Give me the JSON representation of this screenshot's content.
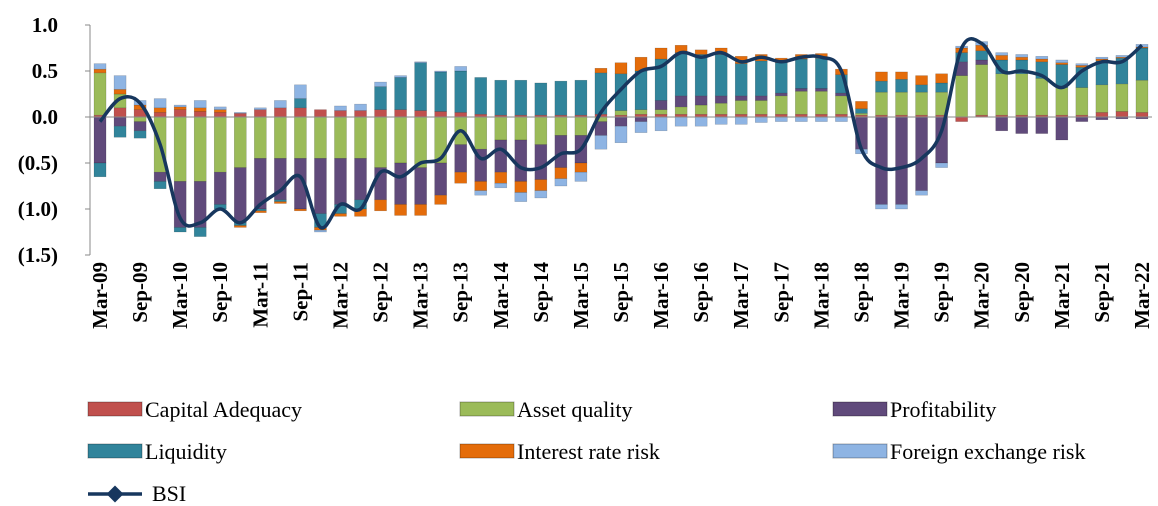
{
  "chart_data": {
    "type": "bar",
    "categories": [
      "Mar-09",
      null,
      "Sep-09",
      null,
      "Mar-10",
      null,
      "Sep-10",
      null,
      "Mar-11",
      null,
      "Sep-11",
      null,
      "Mar-12",
      null,
      "Sep-12",
      null,
      "Mar-13",
      null,
      "Sep-13",
      null,
      "Mar-14",
      null,
      "Sep-14",
      null,
      "Mar-15",
      null,
      "Sep-15",
      null,
      "Mar-16",
      null,
      "Sep-16",
      null,
      "Mar-17",
      null,
      "Sep-17",
      null,
      "Mar-18",
      null,
      "Sep-18",
      null,
      "Mar-19",
      null,
      "Sep-19",
      null,
      "Mar-20",
      null,
      "Sep-20",
      null,
      "Mar-21",
      null,
      "Sep-21",
      null,
      "Mar-22"
    ],
    "series": [
      {
        "name": "Capital Adequacy",
        "color": "#c0504d",
        "values": [
          0.02,
          0.1,
          0.08,
          0.05,
          0.08,
          0.06,
          0.05,
          0.04,
          0.08,
          0.1,
          0.1,
          0.08,
          0.07,
          0.07,
          0.08,
          0.08,
          0.07,
          0.06,
          0.05,
          0.03,
          0.02,
          0.02,
          0.02,
          0.02,
          0.02,
          0.03,
          0.02,
          0.03,
          0.03,
          0.03,
          0.03,
          0.03,
          0.03,
          0.03,
          0.03,
          0.03,
          0.03,
          0.03,
          0.02,
          0.02,
          0.02,
          0.02,
          0.02,
          -0.05,
          0.02,
          0.02,
          0.02,
          0.02,
          0.02,
          0.02,
          0.05,
          0.06,
          0.05
        ]
      },
      {
        "name": "Asset quality",
        "color": "#9bbb59",
        "values": [
          0.46,
          0.15,
          -0.05,
          -0.6,
          -0.7,
          -0.7,
          -0.6,
          -0.55,
          -0.45,
          -0.45,
          -0.45,
          -0.45,
          -0.45,
          -0.45,
          -0.55,
          -0.5,
          -0.55,
          -0.5,
          -0.3,
          -0.35,
          -0.25,
          -0.25,
          -0.3,
          -0.2,
          -0.2,
          -0.05,
          0.05,
          0.05,
          0.05,
          0.08,
          0.1,
          0.12,
          0.15,
          0.15,
          0.2,
          0.25,
          0.25,
          0.2,
          0.02,
          0.25,
          0.25,
          0.25,
          0.25,
          0.45,
          0.55,
          0.45,
          0.45,
          0.4,
          0.3,
          0.3,
          0.3,
          0.3,
          0.35
        ]
      },
      {
        "name": "Profitability",
        "color": "#604a7b",
        "values": [
          -0.5,
          -0.1,
          -0.1,
          -0.1,
          -0.5,
          -0.5,
          -0.35,
          -0.6,
          -0.55,
          -0.45,
          -0.55,
          -0.6,
          -0.5,
          -0.45,
          -0.35,
          -0.45,
          -0.4,
          -0.35,
          -0.3,
          -0.35,
          -0.35,
          -0.45,
          -0.38,
          -0.35,
          -0.3,
          -0.15,
          -0.1,
          -0.05,
          0.1,
          0.12,
          0.1,
          0.08,
          0.05,
          0.05,
          0.03,
          0.03,
          0.03,
          0.03,
          -0.35,
          -0.95,
          -0.95,
          -0.8,
          -0.5,
          0.15,
          0.05,
          -0.15,
          -0.18,
          -0.18,
          -0.25,
          -0.05,
          -0.03,
          -0.02,
          -0.02
        ]
      },
      {
        "name": "Liquidity",
        "color": "#31849b",
        "values": [
          -0.15,
          -0.12,
          -0.08,
          -0.08,
          -0.05,
          -0.1,
          -0.05,
          -0.03,
          -0.02,
          -0.02,
          0.1,
          -0.15,
          -0.1,
          -0.1,
          0.25,
          0.35,
          0.52,
          0.43,
          0.45,
          0.4,
          0.38,
          0.38,
          0.35,
          0.37,
          0.38,
          0.45,
          0.4,
          0.42,
          0.45,
          0.47,
          0.45,
          0.45,
          0.35,
          0.38,
          0.33,
          0.32,
          0.33,
          0.2,
          0.05,
          0.12,
          0.14,
          0.08,
          0.1,
          0.1,
          0.1,
          0.15,
          0.15,
          0.18,
          0.25,
          0.22,
          0.26,
          0.28,
          0.35
        ]
      },
      {
        "name": "Interest rate risk",
        "color": "#e46c0a",
        "values": [
          0.04,
          0.05,
          0.05,
          0.05,
          0.03,
          0.04,
          0.03,
          -0.02,
          -0.02,
          -0.02,
          -0.02,
          -0.03,
          -0.03,
          -0.08,
          -0.12,
          -0.12,
          -0.12,
          -0.1,
          -0.12,
          -0.1,
          -0.12,
          -0.12,
          -0.12,
          -0.12,
          -0.1,
          0.05,
          0.12,
          0.15,
          0.12,
          0.08,
          0.05,
          0.07,
          0.08,
          0.07,
          0.05,
          0.05,
          0.05,
          0.06,
          0.08,
          0.1,
          0.08,
          0.1,
          0.1,
          0.05,
          0.06,
          0.05,
          0.03,
          0.03,
          0.02,
          0.02,
          0.02,
          0.01,
          0.01
        ]
      },
      {
        "name": "Foreign exchange risk",
        "color": "#8eb4e3",
        "values": [
          0.06,
          0.15,
          0.05,
          0.1,
          0.02,
          0.08,
          0.03,
          0.01,
          0.02,
          0.08,
          0.15,
          -0.02,
          0.05,
          0.07,
          0.05,
          0.02,
          0.01,
          0.01,
          0.05,
          -0.05,
          -0.05,
          -0.1,
          -0.08,
          -0.08,
          -0.1,
          -0.15,
          -0.18,
          -0.12,
          -0.15,
          -0.1,
          -0.1,
          -0.08,
          -0.08,
          -0.06,
          -0.05,
          -0.05,
          -0.05,
          -0.05,
          -0.05,
          -0.05,
          -0.05,
          -0.05,
          -0.05,
          0.02,
          0.04,
          0.03,
          0.03,
          0.03,
          0.03,
          0.02,
          0.02,
          0.02,
          0.03
        ]
      }
    ],
    "line": {
      "name": "BSI",
      "color": "#17375e",
      "values": [
        -0.05,
        0.2,
        0.15,
        -0.3,
        -1.1,
        -1.15,
        -1.0,
        -1.15,
        -0.95,
        -0.8,
        -0.65,
        -1.2,
        -0.95,
        -1.0,
        -0.6,
        -0.65,
        -0.5,
        -0.45,
        -0.15,
        -0.45,
        -0.35,
        -0.55,
        -0.55,
        -0.4,
        -0.35,
        0.05,
        0.3,
        0.5,
        0.55,
        0.7,
        0.65,
        0.7,
        0.6,
        0.65,
        0.6,
        0.65,
        0.65,
        0.5,
        -0.35,
        -0.55,
        -0.55,
        -0.45,
        -0.15,
        0.75,
        0.8,
        0.5,
        0.5,
        0.45,
        0.32,
        0.5,
        0.6,
        0.6,
        0.78
      ]
    },
    "ylim": [
      -1.5,
      1.0
    ],
    "yticks": [
      {
        "value": 1.0,
        "label": "1.0"
      },
      0.5,
      {
        "value": 0,
        "label": "0.0"
      },
      {
        "value": -0.5,
        "label": "(0.5)"
      },
      {
        "value": -1.0,
        "label": "(1.0)"
      },
      {
        "value": -1.5,
        "label": "(1.5)"
      }
    ],
    "legend": "bottom"
  }
}
